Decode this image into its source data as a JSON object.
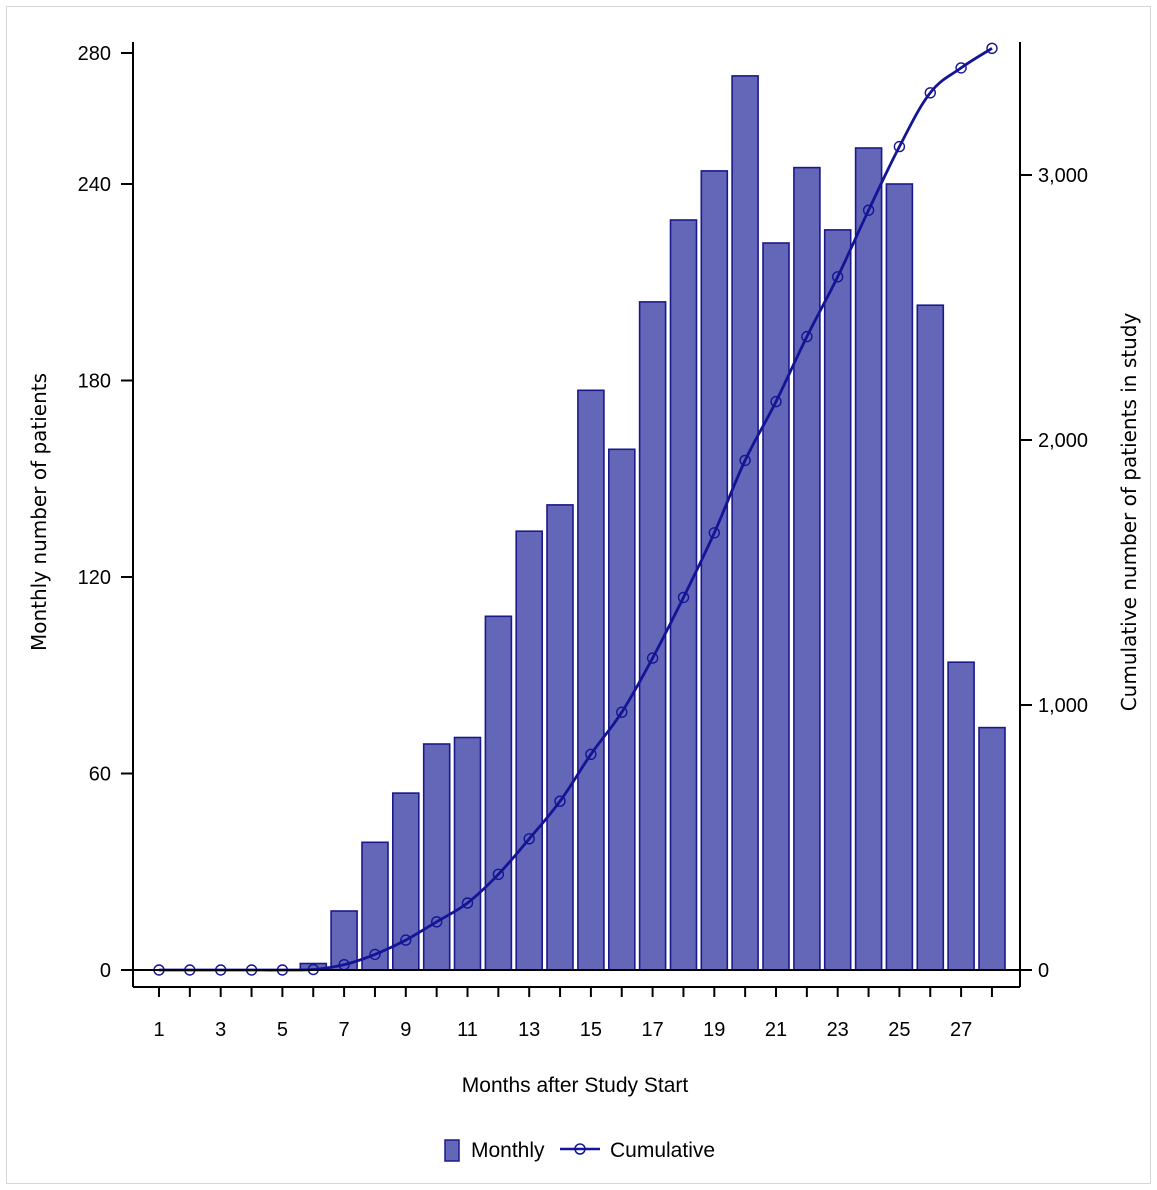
{
  "chart_data": {
    "type": "bar",
    "x": [
      1,
      2,
      3,
      4,
      5,
      6,
      7,
      8,
      9,
      10,
      11,
      12,
      13,
      14,
      15,
      16,
      17,
      18,
      19,
      20,
      21,
      22,
      23,
      24,
      25,
      26,
      27,
      28
    ],
    "x_tick_labels": [
      "1",
      "3",
      "5",
      "7",
      "9",
      "11",
      "13",
      "15",
      "17",
      "19",
      "21",
      "23",
      "25",
      "27"
    ],
    "xlabel": "Months after Study Start",
    "ylabel": "Monthly number of patients",
    "y2label": "Cumulative number of patients in study",
    "ylim": [
      0,
      280
    ],
    "y2lim": [
      0,
      3500
    ],
    "y_ticks": [
      "0",
      "60",
      "120",
      "180",
      "240",
      "280"
    ],
    "y2_ticks": [
      "0",
      "1,000",
      "2,000",
      "3,000"
    ],
    "grid": false,
    "legend_position": "bottom-center",
    "colors": {
      "bar_fill": "#6466b8",
      "bar_stroke": "#1a1a8a",
      "line": "#141496"
    },
    "series": [
      {
        "name": "Monthly",
        "type": "bar",
        "axis": "left",
        "values": [
          0,
          0,
          0,
          0,
          0,
          2,
          18,
          39,
          54,
          69,
          71,
          108,
          134,
          142,
          177,
          159,
          204,
          229,
          244,
          273,
          222,
          245,
          226,
          251,
          240,
          203,
          94,
          74
        ]
      },
      {
        "name": "Cumulative",
        "type": "line",
        "axis": "right",
        "values": [
          0,
          0,
          0,
          0,
          0,
          2,
          20,
          59,
          113,
          182,
          253,
          361,
          495,
          637,
          814,
          973,
          1177,
          1406,
          1650,
          1923,
          2145,
          2390,
          2616,
          2867,
          3107,
          3310,
          3404,
          3478
        ]
      }
    ]
  }
}
